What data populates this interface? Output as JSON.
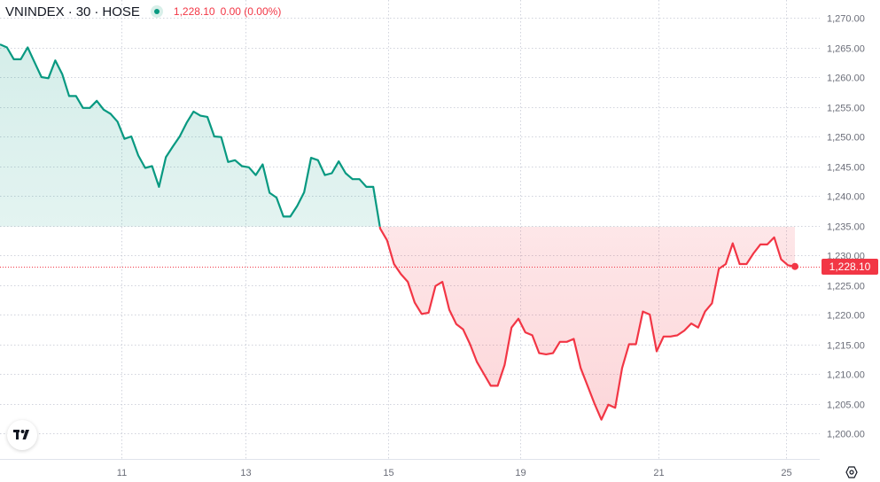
{
  "header": {
    "symbol": "VNINDEX",
    "interval": "30",
    "exchange": "HOSE",
    "separator": "·",
    "last_value": "1,228.10",
    "change": "0.00 (0.00%)"
  },
  "price_tag": "1,228.10",
  "icons": {
    "logo": "tradingview-logo-icon",
    "settings": "chart-settings-icon",
    "status": "market-status-dot-icon"
  },
  "colors": {
    "up": "#089981",
    "down": "#f23645",
    "grid": "#d0d3dc",
    "baseline": "#f23645"
  },
  "chart_data": {
    "type": "area",
    "baseline": 1234.8,
    "last": 1228.1,
    "ylim": [
      1196,
      1272
    ],
    "y_ticks": [
      1200,
      1205,
      1210,
      1215,
      1220,
      1225,
      1230,
      1235,
      1240,
      1245,
      1250,
      1255,
      1260,
      1265,
      1270
    ],
    "y_tick_labels": [
      "1,200.00",
      "1,205.00",
      "1,210.00",
      "1,215.00",
      "1,220.00",
      "1,225.00",
      "1,230.00",
      "1,235.00",
      "1,240.00",
      "1,245.00",
      "1,250.00",
      "1,255.00",
      "1,260.00",
      "1,265.00",
      "1,270.00"
    ],
    "x_ticks": [
      11,
      13,
      15,
      19,
      21,
      25
    ],
    "x_tick_labels": [
      "11",
      "13",
      "15",
      "19",
      "21",
      "25"
    ],
    "x_tick_bars": [
      17.6,
      35.5,
      56.1,
      75.3,
      95.3,
      113.7
    ],
    "x_range": [
      0,
      116
    ],
    "series": [
      {
        "values": [
          1265.5,
          1265.0,
          1263.0,
          1263.0,
          1265.0,
          1262.5,
          1260.0,
          1259.8,
          1262.8,
          1260.5,
          1256.8,
          1256.8,
          1254.8,
          1254.8,
          1256.0,
          1254.5,
          1253.8,
          1252.5,
          1249.6,
          1250.0,
          1246.8,
          1244.7,
          1245.0,
          1241.5,
          1246.5,
          1248.3,
          1250.0,
          1252.3,
          1254.2,
          1253.5,
          1253.3,
          1250.0,
          1249.9,
          1245.7,
          1246.0,
          1245.0,
          1244.8,
          1243.5,
          1245.3,
          1240.5,
          1239.7,
          1236.5,
          1236.5,
          1238.3,
          1240.6,
          1246.4,
          1246.0,
          1243.5,
          1243.8,
          1245.8,
          1243.8,
          1242.8,
          1242.8,
          1241.5,
          1241.5,
          1234.5,
          1232.5,
          1228.5,
          1226.8,
          1225.5,
          1222.0,
          1220.1,
          1220.3,
          1224.8,
          1225.5,
          1220.8,
          1218.4,
          1217.5,
          1215.0,
          1212.0,
          1210.0,
          1208.0,
          1208.0,
          1211.5,
          1217.8,
          1219.3,
          1217.0,
          1216.5,
          1213.5,
          1213.3,
          1213.5,
          1215.4,
          1215.4,
          1215.9,
          1211.0,
          1208.0,
          1205.0,
          1202.3,
          1204.8,
          1204.3,
          1211.0,
          1215.0,
          1215.0,
          1220.5,
          1220.0,
          1213.8,
          1216.3,
          1216.3,
          1216.5,
          1217.3,
          1218.5,
          1217.8,
          1220.5,
          1221.9,
          1227.7,
          1228.5,
          1232.0,
          1228.5,
          1228.5,
          1230.3,
          1231.8,
          1231.8,
          1233.0,
          1229.3,
          1228.3,
          1228.1
        ]
      }
    ]
  }
}
